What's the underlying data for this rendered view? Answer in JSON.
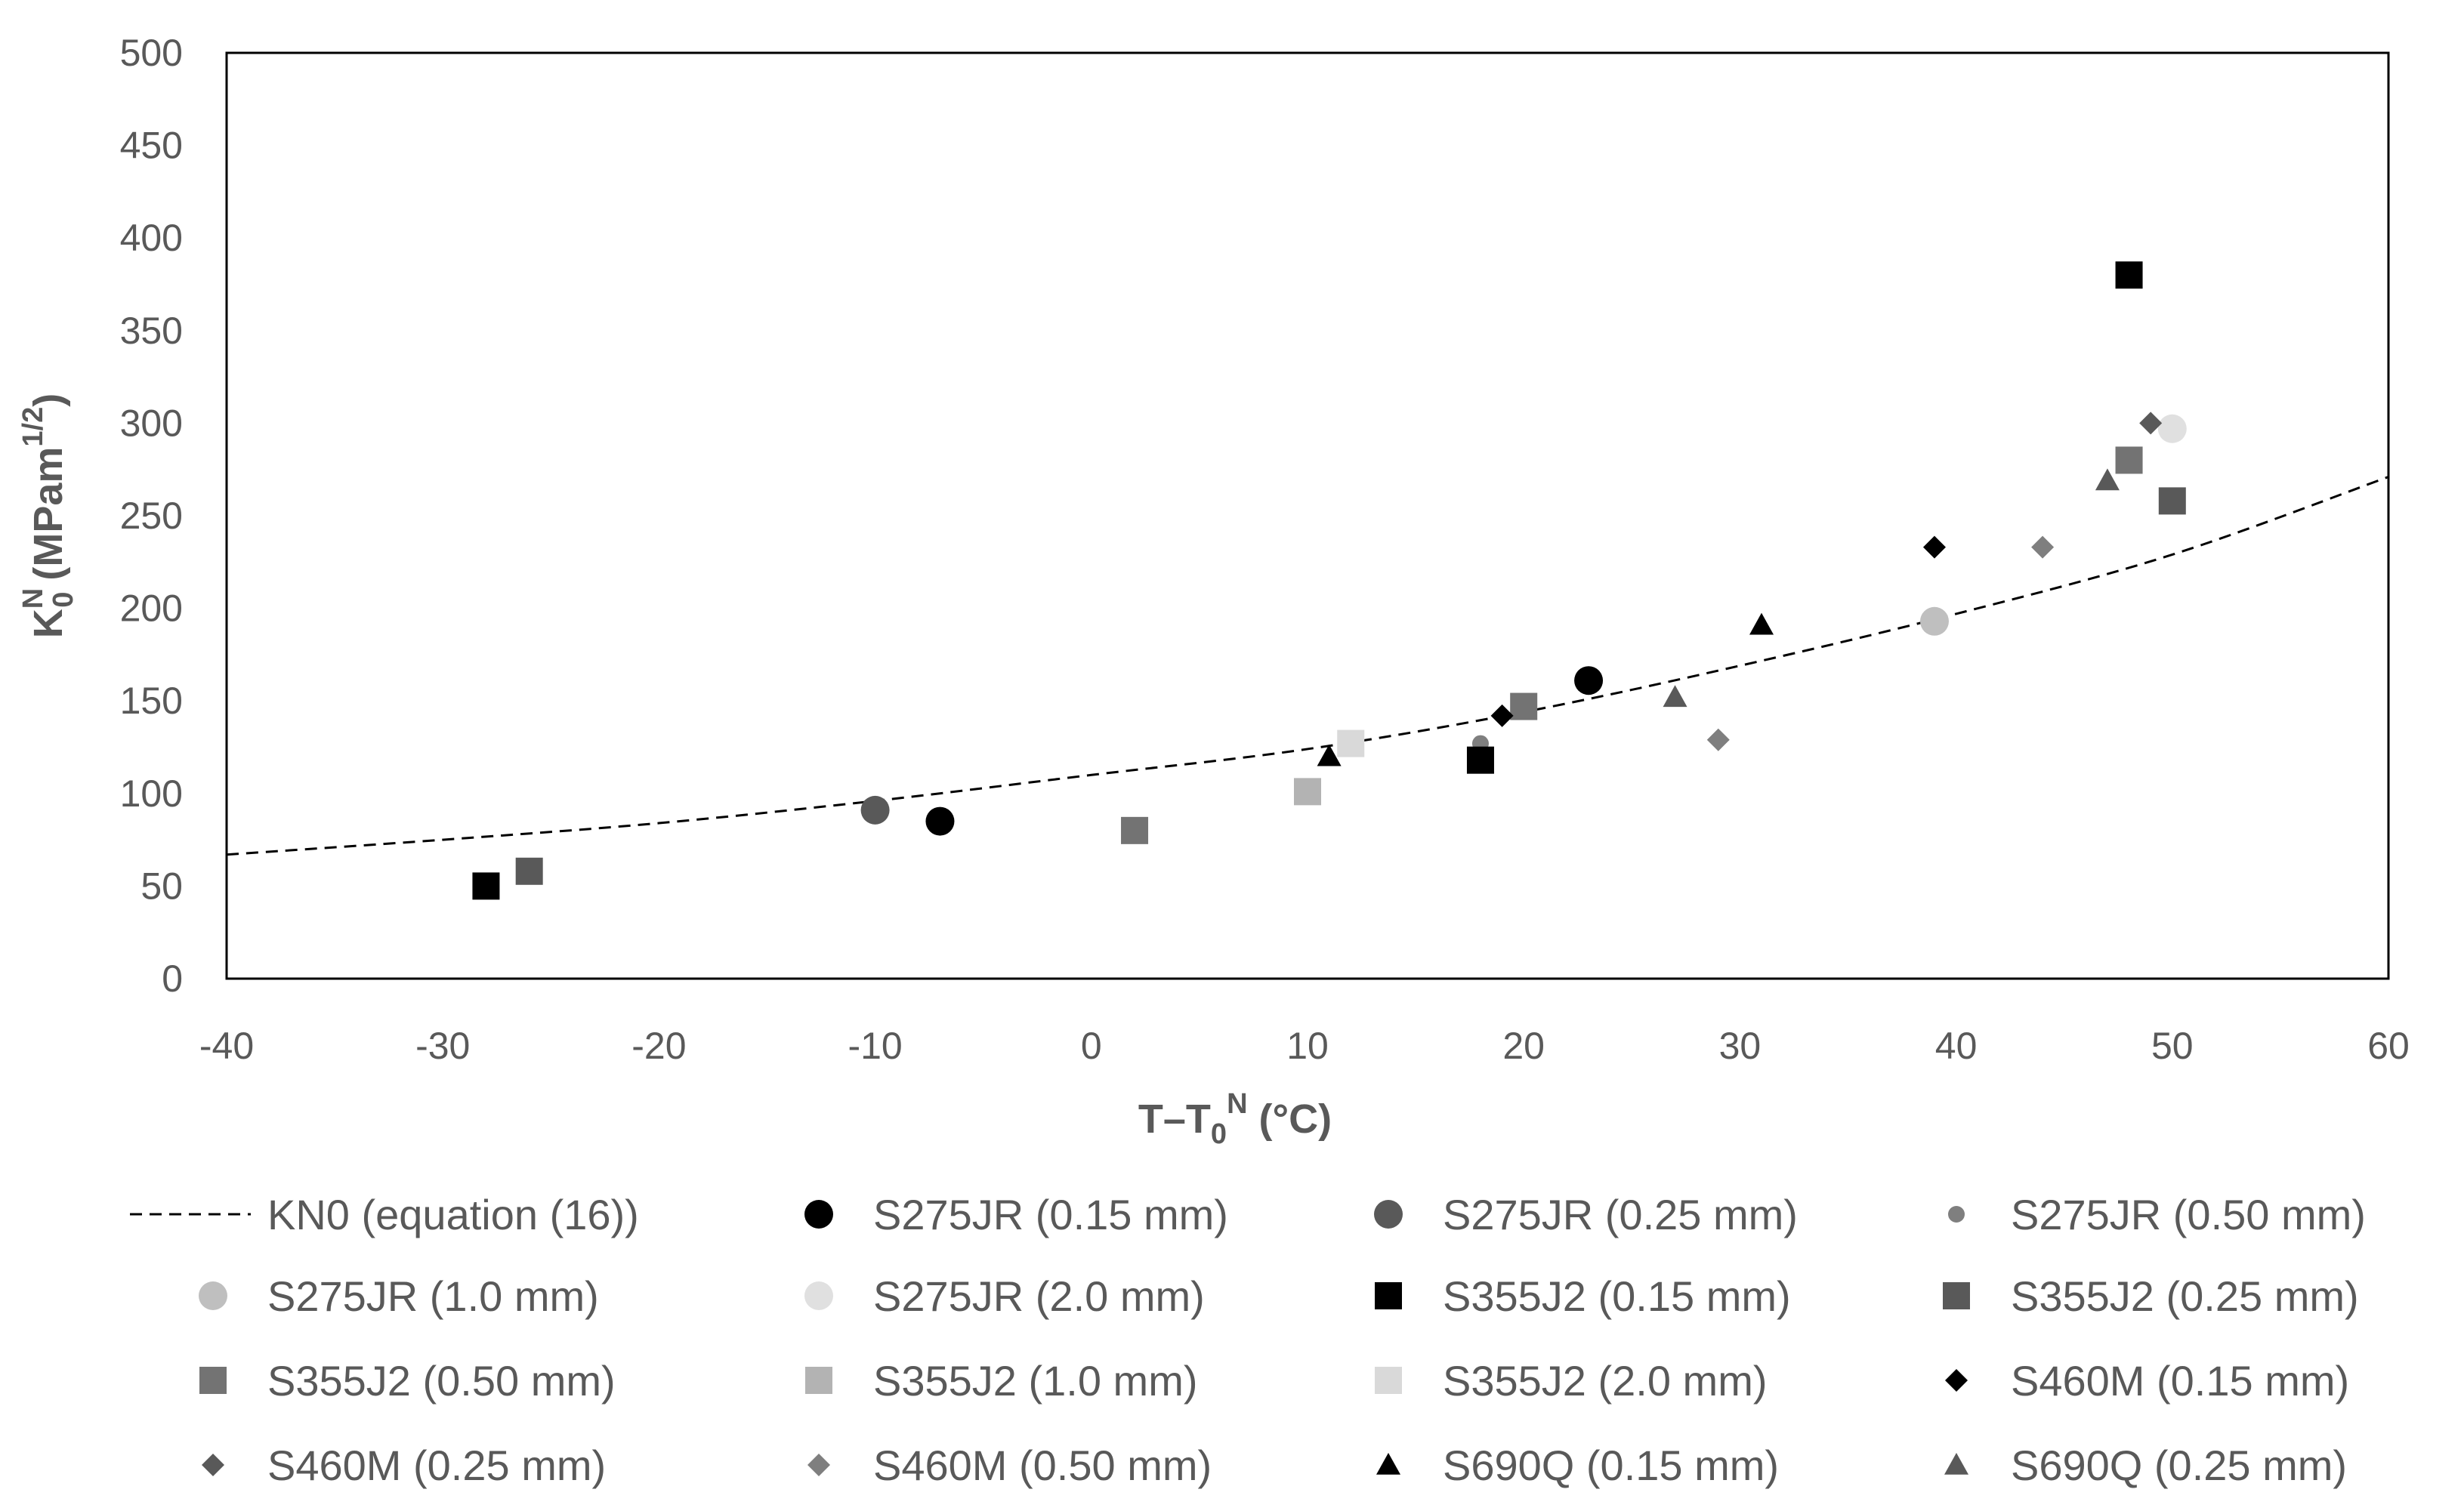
{
  "chart_data": {
    "type": "scatter",
    "title": "",
    "xlabel": {
      "main": "T–T",
      "sub": "0",
      "sup": "N",
      "tail": " (°C)"
    },
    "ylabel": {
      "main": "K",
      "sup": "N",
      "sub": "0",
      "tail": " (MPam",
      "tail_sup": "1/2",
      "end": ")"
    },
    "xlim": [
      -40,
      60
    ],
    "ylim": [
      0,
      500
    ],
    "x_ticks": [
      -40,
      -30,
      -20,
      -10,
      0,
      10,
      20,
      30,
      40,
      50,
      60
    ],
    "y_ticks": [
      0,
      50,
      100,
      150,
      200,
      250,
      300,
      350,
      400,
      450,
      500
    ],
    "grid": false,
    "legend_position": "bottom",
    "curve": {
      "name": "KN0 (equation (16))",
      "style": "dashed",
      "color": "#000000",
      "x": [
        -40,
        -30,
        -20,
        -10,
        0,
        10,
        20,
        30,
        40,
        50,
        60
      ],
      "y": [
        67,
        75,
        84,
        96,
        110,
        124,
        144,
        169,
        197,
        229,
        271
      ]
    },
    "series": [
      {
        "name": "S275JR (0.15 mm)",
        "marker": "circle",
        "size": "large",
        "color": "#000000",
        "points": [
          [
            -7,
            85
          ],
          [
            23,
            161
          ]
        ]
      },
      {
        "name": "S275JR (0.25 mm)",
        "marker": "circle",
        "size": "large",
        "color": "#595959",
        "points": [
          [
            -10,
            91
          ]
        ]
      },
      {
        "name": "S275JR (0.50 mm)",
        "marker": "circle",
        "size": "small",
        "color": "#7f7f7f",
        "points": [
          [
            18,
            127
          ]
        ]
      },
      {
        "name": "S275JR (1.0 mm)",
        "marker": "circle",
        "size": "large",
        "color": "#bfbfbf",
        "points": [
          [
            39,
            193
          ]
        ]
      },
      {
        "name": "S275JR (2.0 mm)",
        "marker": "circle",
        "size": "large",
        "color": "#e0e0e0",
        "points": [
          [
            50,
            297
          ]
        ]
      },
      {
        "name": "S355J2 (0.15 mm)",
        "marker": "square",
        "size": "large",
        "color": "#000000",
        "points": [
          [
            -28,
            50
          ],
          [
            18,
            118
          ],
          [
            48,
            380
          ]
        ]
      },
      {
        "name": "S355J2 (0.25 mm)",
        "marker": "square",
        "size": "large",
        "color": "#595959",
        "points": [
          [
            -26,
            58
          ],
          [
            50,
            258
          ]
        ]
      },
      {
        "name": "S355J2 (0.50 mm)",
        "marker": "square",
        "size": "large",
        "color": "#737373",
        "points": [
          [
            2,
            80
          ],
          [
            20,
            147
          ],
          [
            48,
            280
          ]
        ]
      },
      {
        "name": "S355J2 (1.0 mm)",
        "marker": "square",
        "size": "large",
        "color": "#b3b3b3",
        "points": [
          [
            10,
            101
          ]
        ]
      },
      {
        "name": "S355J2 (2.0 mm)",
        "marker": "square",
        "size": "large",
        "color": "#d9d9d9",
        "points": [
          [
            12,
            127
          ]
        ]
      },
      {
        "name": "S460M (0.15 mm)",
        "marker": "diamond",
        "size": "medium",
        "color": "#000000",
        "points": [
          [
            19,
            142
          ],
          [
            39,
            233
          ]
        ]
      },
      {
        "name": "S460M (0.25 mm)",
        "marker": "diamond",
        "size": "medium",
        "color": "#595959",
        "points": [
          [
            49,
            300
          ]
        ]
      },
      {
        "name": "S460M (0.50 mm)",
        "marker": "diamond",
        "size": "medium",
        "color": "#7f7f7f",
        "points": [
          [
            29,
            129
          ],
          [
            44,
            233
          ]
        ]
      },
      {
        "name": "S690Q (0.15 mm)",
        "marker": "triangle",
        "size": "medium",
        "color": "#000000",
        "points": [
          [
            11,
            120
          ],
          [
            31,
            191
          ]
        ]
      },
      {
        "name": "S690Q (0.25 mm)",
        "marker": "triangle",
        "size": "medium",
        "color": "#595959",
        "points": [
          [
            27,
            152
          ],
          [
            47,
            269
          ]
        ]
      }
    ]
  }
}
